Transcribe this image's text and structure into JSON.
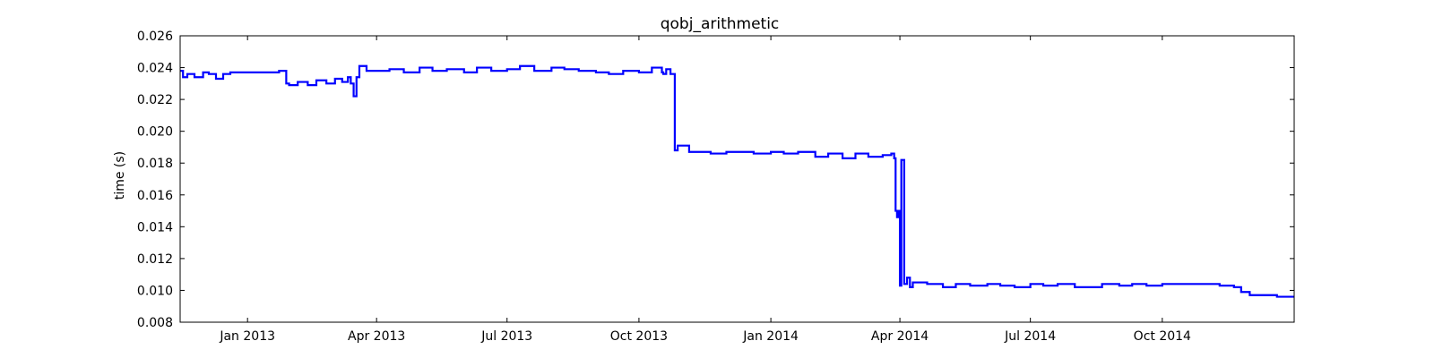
{
  "chart_data": {
    "type": "line",
    "title": "qobj_arithmetic",
    "xlabel": "",
    "ylabel": "time (s)",
    "xlim": [
      "2012-11-15",
      "2015-01-01"
    ],
    "ylim": [
      0.008,
      0.026
    ],
    "grid": false,
    "legend": "none",
    "x_ticks": [
      {
        "date": "2013-01-01",
        "label": "Jan 2013"
      },
      {
        "date": "2013-04-01",
        "label": "Apr 2013"
      },
      {
        "date": "2013-07-01",
        "label": "Jul 2013"
      },
      {
        "date": "2013-10-01",
        "label": "Oct 2013"
      },
      {
        "date": "2014-01-01",
        "label": "Jan 2014"
      },
      {
        "date": "2014-04-01",
        "label": "Apr 2014"
      },
      {
        "date": "2014-07-01",
        "label": "Jul 2014"
      },
      {
        "date": "2014-10-01",
        "label": "Oct 2014"
      }
    ],
    "y_ticks": [
      {
        "value": 0.008,
        "label": "0.008"
      },
      {
        "value": 0.01,
        "label": "0.010"
      },
      {
        "value": 0.012,
        "label": "0.012"
      },
      {
        "value": 0.014,
        "label": "0.014"
      },
      {
        "value": 0.016,
        "label": "0.016"
      },
      {
        "value": 0.018,
        "label": "0.018"
      },
      {
        "value": 0.02,
        "label": "0.020"
      },
      {
        "value": 0.022,
        "label": "0.022"
      },
      {
        "value": 0.024,
        "label": "0.024"
      },
      {
        "value": 0.026,
        "label": "0.026"
      }
    ],
    "series": [
      {
        "color": "#0000ff",
        "x": [
          "2012-11-15",
          "2012-11-17",
          "2012-11-20",
          "2012-11-25",
          "2012-12-01",
          "2012-12-05",
          "2012-12-10",
          "2012-12-15",
          "2012-12-20",
          "2012-12-26",
          "2013-01-01",
          "2013-01-08",
          "2013-01-15",
          "2013-01-23",
          "2013-01-28",
          "2013-01-30",
          "2013-02-05",
          "2013-02-12",
          "2013-02-18",
          "2013-02-25",
          "2013-03-03",
          "2013-03-08",
          "2013-03-12",
          "2013-03-14",
          "2013-03-16",
          "2013-03-18",
          "2013-03-20",
          "2013-03-25",
          "2013-04-01",
          "2013-04-10",
          "2013-04-20",
          "2013-05-01",
          "2013-05-10",
          "2013-05-20",
          "2013-06-01",
          "2013-06-10",
          "2013-06-20",
          "2013-07-01",
          "2013-07-10",
          "2013-07-20",
          "2013-08-01",
          "2013-08-10",
          "2013-08-20",
          "2013-09-01",
          "2013-09-10",
          "2013-09-20",
          "2013-10-01",
          "2013-10-10",
          "2013-10-17",
          "2013-10-18",
          "2013-10-20",
          "2013-10-23",
          "2013-10-25",
          "2013-10-26",
          "2013-10-28",
          "2013-11-05",
          "2013-11-10",
          "2013-11-20",
          "2013-12-01",
          "2013-12-10",
          "2013-12-20",
          "2014-01-01",
          "2014-01-10",
          "2014-01-20",
          "2014-02-01",
          "2014-02-10",
          "2014-02-20",
          "2014-03-01",
          "2014-03-10",
          "2014-03-20",
          "2014-03-26",
          "2014-03-28",
          "2014-03-29",
          "2014-03-30",
          "2014-03-31",
          "2014-04-01",
          "2014-04-02",
          "2014-04-04",
          "2014-04-06",
          "2014-04-08",
          "2014-04-10",
          "2014-04-15",
          "2014-04-20",
          "2014-05-01",
          "2014-05-10",
          "2014-05-20",
          "2014-06-01",
          "2014-06-10",
          "2014-06-20",
          "2014-07-01",
          "2014-07-10",
          "2014-07-20",
          "2014-08-01",
          "2014-08-10",
          "2014-08-20",
          "2014-09-01",
          "2014-09-10",
          "2014-09-20",
          "2014-10-01",
          "2014-10-10",
          "2014-10-20",
          "2014-11-01",
          "2014-11-10",
          "2014-11-20",
          "2014-11-25",
          "2014-12-01",
          "2014-12-10",
          "2014-12-20",
          "2015-01-01"
        ],
        "y": [
          0.0238,
          0.0234,
          0.0236,
          0.0234,
          0.0237,
          0.0236,
          0.0233,
          0.0236,
          0.0237,
          0.0237,
          0.0237,
          0.0237,
          0.0237,
          0.0238,
          0.023,
          0.0229,
          0.0231,
          0.0229,
          0.0232,
          0.023,
          0.0233,
          0.0231,
          0.0234,
          0.023,
          0.0222,
          0.0234,
          0.0241,
          0.0238,
          0.0238,
          0.0239,
          0.0237,
          0.024,
          0.0238,
          0.0239,
          0.0237,
          0.024,
          0.0238,
          0.0239,
          0.0241,
          0.0238,
          0.024,
          0.0239,
          0.0238,
          0.0237,
          0.0236,
          0.0238,
          0.0237,
          0.024,
          0.0237,
          0.0236,
          0.0239,
          0.0236,
          0.0236,
          0.0188,
          0.0191,
          0.0187,
          0.0187,
          0.0186,
          0.0187,
          0.0187,
          0.0186,
          0.0187,
          0.0186,
          0.0187,
          0.0184,
          0.0186,
          0.0183,
          0.0186,
          0.0184,
          0.0185,
          0.0186,
          0.0183,
          0.015,
          0.0146,
          0.015,
          0.0103,
          0.0182,
          0.0104,
          0.0108,
          0.0102,
          0.0105,
          0.0105,
          0.0104,
          0.0102,
          0.0104,
          0.0103,
          0.0104,
          0.0103,
          0.0102,
          0.0104,
          0.0103,
          0.0104,
          0.0102,
          0.0102,
          0.0104,
          0.0103,
          0.0104,
          0.0103,
          0.0104,
          0.0104,
          0.0104,
          0.0104,
          0.0103,
          0.0102,
          0.0099,
          0.0097,
          0.0097,
          0.0096,
          0.0096
        ]
      }
    ]
  }
}
